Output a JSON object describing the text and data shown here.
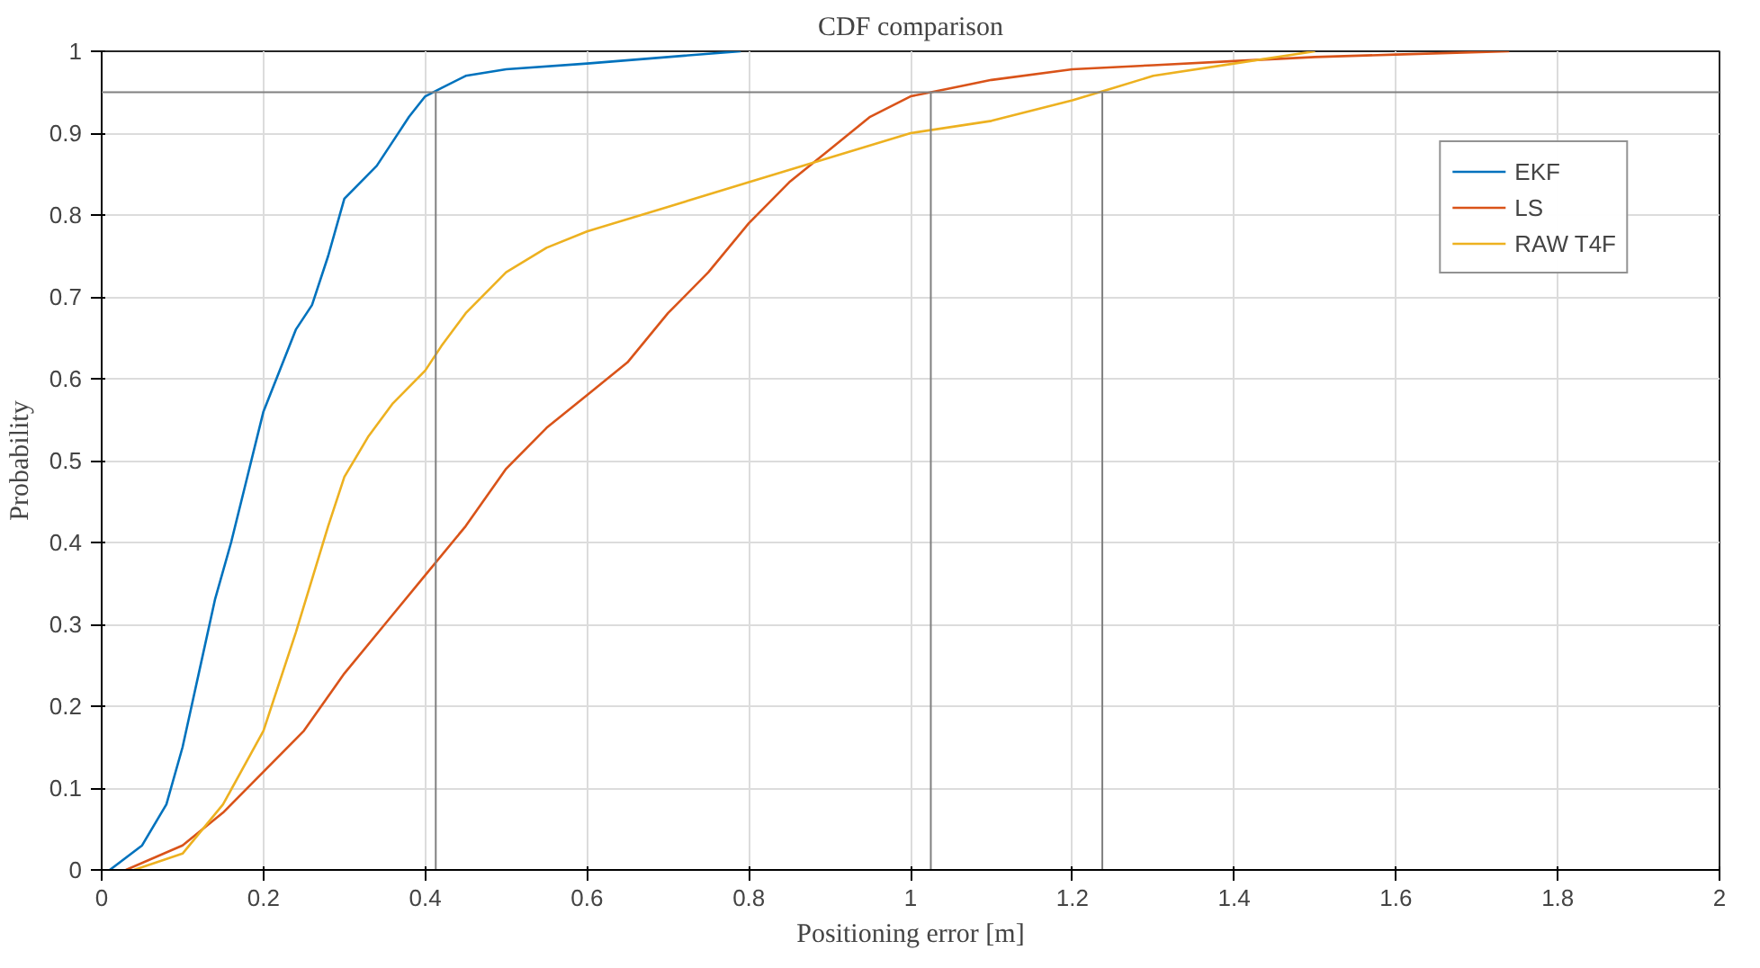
{
  "chart_data": {
    "type": "line",
    "title": "CDF comparison",
    "xlabel": "Positioning error [m]",
    "ylabel": "Probability",
    "xlim": [
      0,
      2
    ],
    "ylim": [
      0,
      1
    ],
    "xticks": [
      0,
      0.2,
      0.4,
      0.6,
      0.8,
      1,
      1.2,
      1.4,
      1.6,
      1.8,
      2
    ],
    "yticks": [
      0,
      0.1,
      0.2,
      0.3,
      0.4,
      0.5,
      0.6,
      0.7,
      0.8,
      0.9,
      1
    ],
    "grid": true,
    "legend": "top right",
    "line_style": "solid",
    "marker": "none",
    "series": [
      {
        "name": "EKF",
        "color": "#0072bd",
        "x": [
          0.01,
          0.05,
          0.08,
          0.1,
          0.12,
          0.14,
          0.16,
          0.18,
          0.2,
          0.22,
          0.24,
          0.26,
          0.28,
          0.3,
          0.32,
          0.34,
          0.36,
          0.38,
          0.4,
          0.42,
          0.45,
          0.5,
          0.6,
          0.7,
          0.79
        ],
        "values": [
          0,
          0.03,
          0.08,
          0.15,
          0.24,
          0.33,
          0.4,
          0.48,
          0.56,
          0.61,
          0.66,
          0.69,
          0.75,
          0.82,
          0.84,
          0.86,
          0.89,
          0.92,
          0.945,
          0.955,
          0.97,
          0.978,
          0.985,
          0.993,
          1
        ]
      },
      {
        "name": "LS",
        "color": "#d95319",
        "x": [
          0.03,
          0.1,
          0.15,
          0.2,
          0.25,
          0.3,
          0.35,
          0.4,
          0.45,
          0.5,
          0.55,
          0.6,
          0.65,
          0.7,
          0.75,
          0.8,
          0.85,
          0.9,
          0.95,
          1,
          1.05,
          1.1,
          1.2,
          1.3,
          1.4,
          1.5,
          1.6,
          1.74
        ],
        "values": [
          0,
          0.03,
          0.07,
          0.12,
          0.17,
          0.24,
          0.3,
          0.36,
          0.42,
          0.49,
          0.54,
          0.58,
          0.62,
          0.68,
          0.73,
          0.79,
          0.84,
          0.88,
          0.92,
          0.945,
          0.955,
          0.965,
          0.978,
          0.983,
          0.988,
          0.993,
          0.996,
          1
        ]
      },
      {
        "name": "RAW T4F",
        "color": "#edb120",
        "x": [
          0.04,
          0.1,
          0.15,
          0.2,
          0.24,
          0.28,
          0.3,
          0.33,
          0.36,
          0.4,
          0.42,
          0.45,
          0.5,
          0.55,
          0.6,
          0.7,
          0.8,
          0.9,
          1,
          1.1,
          1.2,
          1.25,
          1.3,
          1.4,
          1.5
        ],
        "values": [
          0,
          0.02,
          0.08,
          0.17,
          0.29,
          0.42,
          0.48,
          0.53,
          0.57,
          0.61,
          0.64,
          0.68,
          0.73,
          0.76,
          0.78,
          0.81,
          0.84,
          0.87,
          0.9,
          0.915,
          0.94,
          0.955,
          0.97,
          0.985,
          1
        ]
      }
    ],
    "ref_lines": [
      {
        "axis": "y",
        "value": 0.95,
        "color": "#808080"
      },
      {
        "axis": "x",
        "value": 0.413,
        "color": "#808080"
      },
      {
        "axis": "x",
        "value": 1.025,
        "color": "#808080"
      },
      {
        "axis": "x",
        "value": 1.237,
        "color": "#808080"
      }
    ]
  }
}
